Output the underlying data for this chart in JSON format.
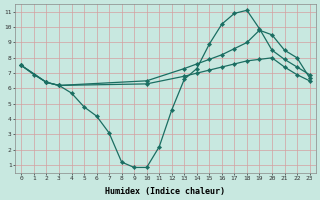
{
  "line1_x": [
    0,
    1,
    2,
    3,
    4,
    5,
    6,
    7,
    8,
    9,
    10,
    11,
    12,
    13,
    14,
    15,
    16,
    17,
    18,
    19,
    20,
    21,
    22,
    23
  ],
  "line1_y": [
    7.5,
    6.9,
    6.4,
    6.2,
    5.7,
    4.8,
    4.2,
    3.1,
    1.2,
    0.85,
    0.85,
    2.2,
    4.6,
    6.6,
    7.3,
    8.9,
    10.2,
    10.9,
    11.1,
    9.9,
    8.5,
    7.9,
    7.4,
    6.9
  ],
  "line2_x": [
    0,
    2,
    3,
    10,
    13,
    14,
    15,
    16,
    17,
    18,
    19,
    20,
    21,
    22,
    23
  ],
  "line2_y": [
    7.5,
    6.4,
    6.2,
    6.5,
    7.3,
    7.6,
    7.9,
    8.2,
    8.6,
    9.0,
    9.8,
    9.5,
    8.5,
    8.0,
    6.7
  ],
  "line3_x": [
    0,
    2,
    3,
    10,
    13,
    14,
    15,
    16,
    17,
    18,
    19,
    20,
    21,
    22,
    23
  ],
  "line3_y": [
    7.5,
    6.4,
    6.2,
    6.3,
    6.8,
    7.0,
    7.2,
    7.4,
    7.6,
    7.8,
    7.9,
    8.0,
    7.4,
    6.9,
    6.5
  ],
  "color": "#1a6e62",
  "bg_color": "#c8e8e0",
  "grid_major_color": "#e8c8c8",
  "grid_minor_color": "#e0d0d0",
  "xlabel": "Humidex (Indice chaleur)",
  "xlim": [
    -0.5,
    23.5
  ],
  "ylim": [
    0.5,
    11.5
  ],
  "xticks": [
    0,
    1,
    2,
    3,
    4,
    5,
    6,
    7,
    8,
    9,
    10,
    11,
    12,
    13,
    14,
    15,
    16,
    17,
    18,
    19,
    20,
    21,
    22,
    23
  ],
  "yticks": [
    1,
    2,
    3,
    4,
    5,
    6,
    7,
    8,
    9,
    10,
    11
  ]
}
